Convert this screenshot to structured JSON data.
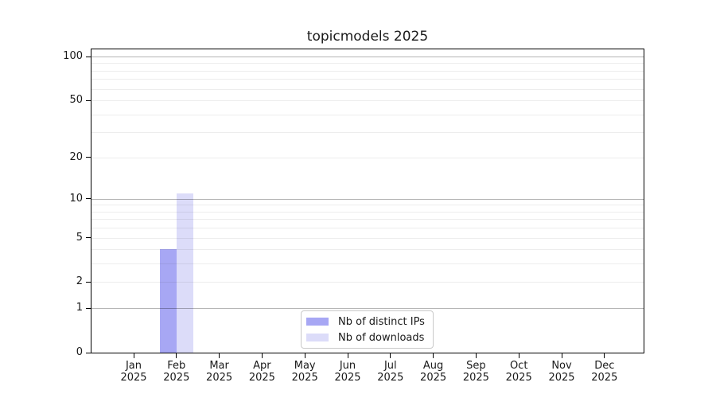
{
  "chart_data": {
    "type": "bar",
    "title": "topicmodels 2025",
    "categories": [
      "Jan 2025",
      "Feb 2025",
      "Mar 2025",
      "Apr 2025",
      "May 2025",
      "Jun 2025",
      "Jul 2025",
      "Aug 2025",
      "Sep 2025",
      "Oct 2025",
      "Nov 2025",
      "Dec 2025"
    ],
    "series": [
      {
        "name": "Nb of distinct IPs",
        "color": "#a7a7f4",
        "values": [
          0,
          4,
          0,
          0,
          0,
          0,
          0,
          0,
          0,
          0,
          0,
          0
        ]
      },
      {
        "name": "Nb of downloads",
        "color": "#dcdcf9",
        "values": [
          0,
          11,
          0,
          0,
          0,
          0,
          0,
          0,
          0,
          0,
          0,
          0
        ]
      }
    ],
    "yscale": "log1p",
    "ylim": [
      0,
      112
    ],
    "yticks": [
      0,
      1,
      2,
      5,
      10,
      20,
      50,
      100
    ],
    "gridlines": {
      "major": [
        1,
        10,
        100
      ],
      "minor": [
        2,
        3,
        4,
        5,
        6,
        7,
        8,
        9,
        20,
        30,
        40,
        50,
        60,
        70,
        80,
        90
      ]
    },
    "grid": true,
    "legend_position": "lower center inside"
  },
  "colors": {
    "background": "#ffffff",
    "spine": "#000000",
    "text": "#1a1a1a",
    "major_grid": "rgba(0,0,0,0.29)",
    "minor_grid": "rgba(0,0,0,0.07)",
    "legend_border": "#c9c9c9"
  }
}
